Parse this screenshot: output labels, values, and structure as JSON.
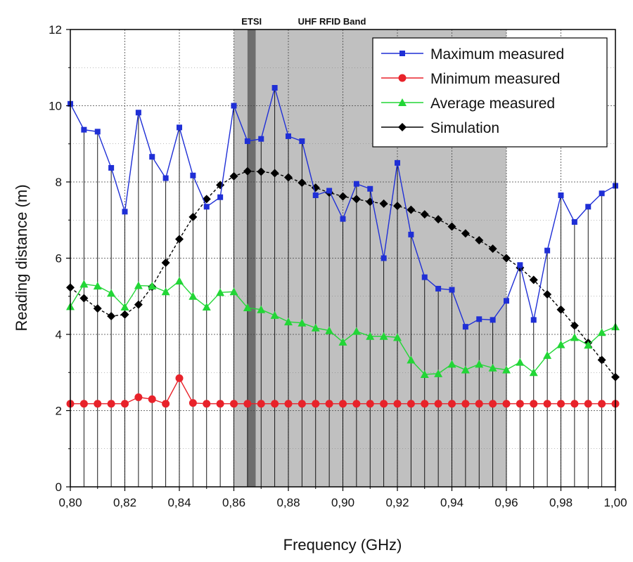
{
  "chart_data": {
    "type": "line",
    "title": "",
    "xlabel": "Frequency (GHz)",
    "ylabel": "Reading distance (m)",
    "xlim": [
      0.8,
      1.0
    ],
    "ylim": [
      0,
      12
    ],
    "x_ticks": [
      0.8,
      0.82,
      0.84,
      0.86,
      0.88,
      0.9,
      0.92,
      0.94,
      0.96,
      0.98,
      1.0
    ],
    "x_tick_labels": [
      "0,80",
      "0,82",
      "0,84",
      "0,86",
      "0,88",
      "0,90",
      "0,92",
      "0,94",
      "0,96",
      "0,98",
      "1,00"
    ],
    "y_ticks": [
      0,
      2,
      4,
      6,
      8,
      10,
      12
    ],
    "y_tick_labels": [
      "0",
      "2",
      "4",
      "6",
      "8",
      "10",
      "12"
    ],
    "grid": true,
    "legend_position": "top-right",
    "bands": [
      {
        "label": "UHF RFID Band",
        "x_start": 0.86,
        "x_end": 0.96,
        "color": "#c0c0c0"
      },
      {
        "label": "ETSI",
        "x_start": 0.865,
        "x_end": 0.868,
        "color": "#6e6e6e"
      }
    ],
    "x": [
      0.8,
      0.805,
      0.81,
      0.815,
      0.82,
      0.825,
      0.83,
      0.835,
      0.84,
      0.845,
      0.85,
      0.855,
      0.86,
      0.865,
      0.87,
      0.875,
      0.88,
      0.885,
      0.89,
      0.895,
      0.9,
      0.905,
      0.91,
      0.915,
      0.92,
      0.925,
      0.93,
      0.935,
      0.94,
      0.945,
      0.95,
      0.955,
      0.96,
      0.965,
      0.97,
      0.975,
      0.98,
      0.985,
      0.99,
      0.995,
      1.0
    ],
    "series": [
      {
        "name": "Maximum measured",
        "color": "#1f2fd6",
        "marker": "square",
        "values": [
          10.05,
          9.37,
          9.32,
          8.37,
          7.22,
          9.82,
          8.66,
          8.1,
          9.43,
          8.17,
          7.35,
          7.6,
          10.0,
          9.07,
          9.13,
          10.47,
          9.2,
          9.07,
          7.65,
          7.77,
          7.03,
          7.95,
          7.82,
          6.0,
          8.5,
          6.62,
          5.5,
          5.2,
          5.17,
          4.2,
          4.4,
          4.38,
          4.88,
          5.82,
          4.38,
          6.2,
          7.65,
          6.95,
          7.35,
          7.7,
          7.9
        ]
      },
      {
        "name": "Minimum measured",
        "color": "#e8222a",
        "marker": "circle",
        "values": [
          2.18,
          2.18,
          2.18,
          2.18,
          2.18,
          2.35,
          2.3,
          2.18,
          2.85,
          2.2,
          2.18,
          2.18,
          2.18,
          2.18,
          2.18,
          2.18,
          2.18,
          2.18,
          2.18,
          2.18,
          2.18,
          2.18,
          2.18,
          2.18,
          2.18,
          2.18,
          2.18,
          2.18,
          2.18,
          2.18,
          2.18,
          2.18,
          2.18,
          2.18,
          2.18,
          2.18,
          2.18,
          2.18,
          2.18,
          2.18,
          2.18
        ]
      },
      {
        "name": "Average measured",
        "color": "#22d636",
        "marker": "triangle",
        "values": [
          4.73,
          5.32,
          5.27,
          5.08,
          4.72,
          5.28,
          5.27,
          5.12,
          5.4,
          5.0,
          4.72,
          5.1,
          5.12,
          4.7,
          4.65,
          4.5,
          4.33,
          4.3,
          4.17,
          4.1,
          3.8,
          4.08,
          3.95,
          3.95,
          3.92,
          3.33,
          2.95,
          2.97,
          3.22,
          3.07,
          3.22,
          3.12,
          3.07,
          3.27,
          3.0,
          3.45,
          3.73,
          3.92,
          3.72,
          4.05,
          4.2
        ]
      },
      {
        "name": "Simulation",
        "color": "#000000",
        "marker": "diamond",
        "values": [
          5.23,
          4.95,
          4.68,
          4.48,
          4.52,
          4.78,
          5.25,
          5.88,
          6.5,
          7.08,
          7.55,
          7.92,
          8.15,
          8.28,
          8.27,
          8.23,
          8.12,
          7.98,
          7.85,
          7.72,
          7.62,
          7.55,
          7.48,
          7.43,
          7.37,
          7.27,
          7.15,
          7.02,
          6.83,
          6.65,
          6.47,
          6.25,
          6.0,
          5.75,
          5.43,
          5.05,
          4.65,
          4.23,
          3.78,
          3.33,
          2.88
        ]
      }
    ]
  }
}
